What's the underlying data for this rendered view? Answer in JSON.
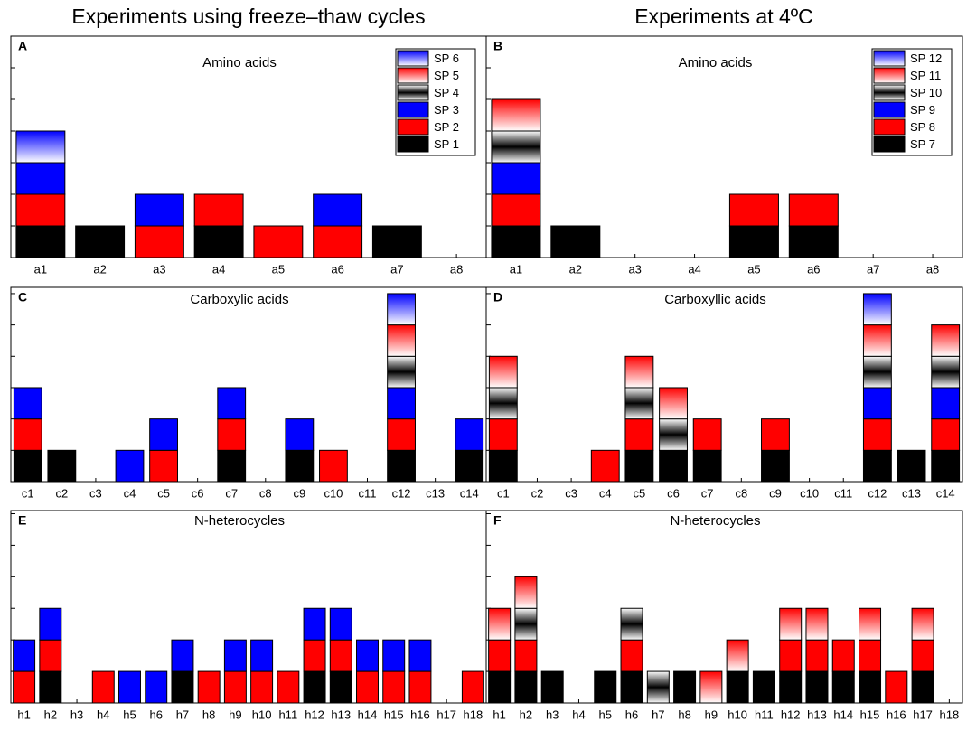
{
  "column_titles": [
    "Experiments using freeze–thaw cycles",
    "Experiments at 4ºC"
  ],
  "chart_data": [
    {
      "type": "bar",
      "stacked": true,
      "panel": "A",
      "title": "Amino acids",
      "categories": [
        "a1",
        "a2",
        "a3",
        "a4",
        "a5",
        "a6",
        "a7",
        "a8"
      ],
      "ylim": [
        0,
        7
      ],
      "yticks": [
        0,
        1,
        2,
        3,
        4,
        5,
        6,
        7
      ],
      "legend": "upper right",
      "series": [
        {
          "name": "SP 1",
          "color": "#000000",
          "values": [
            1,
            1,
            0,
            1,
            0,
            0,
            1,
            0
          ]
        },
        {
          "name": "SP 2",
          "color": "#ff0000",
          "values": [
            1,
            0,
            1,
            1,
            1,
            1,
            0,
            0
          ]
        },
        {
          "name": "SP 3",
          "color": "#0000ff",
          "values": [
            1,
            0,
            1,
            0,
            0,
            1,
            0,
            0
          ]
        },
        {
          "name": "SP 4",
          "color": "#000000",
          "gradient": "middle",
          "values": [
            0,
            0,
            0,
            0,
            0,
            0,
            0,
            0
          ]
        },
        {
          "name": "SP 5",
          "color": "#ff0000",
          "gradient": "top",
          "values": [
            0,
            0,
            0,
            0,
            0,
            0,
            0,
            0
          ]
        },
        {
          "name": "SP 6",
          "color": "#0000ff",
          "gradient": "top",
          "values": [
            1,
            0,
            0,
            0,
            0,
            0,
            0,
            0
          ]
        }
      ]
    },
    {
      "type": "bar",
      "stacked": true,
      "panel": "B",
      "title": "Amino acids",
      "categories": [
        "a1",
        "a2",
        "a3",
        "a4",
        "a5",
        "a6",
        "a7",
        "a8"
      ],
      "ylim": [
        0,
        7
      ],
      "yticks": [
        0,
        1,
        2,
        3,
        4,
        5,
        6,
        7
      ],
      "legend": "upper right",
      "series": [
        {
          "name": "SP 7",
          "color": "#000000",
          "values": [
            1,
            1,
            0,
            0,
            1,
            1,
            0,
            0
          ]
        },
        {
          "name": "SP 8",
          "color": "#ff0000",
          "values": [
            1,
            0,
            0,
            0,
            1,
            1,
            0,
            0
          ]
        },
        {
          "name": "SP 9",
          "color": "#0000ff",
          "values": [
            1,
            0,
            0,
            0,
            0,
            0,
            0,
            0
          ]
        },
        {
          "name": "SP 10",
          "color": "#000000",
          "gradient": "middle",
          "values": [
            1,
            0,
            0,
            0,
            0,
            0,
            0,
            0
          ]
        },
        {
          "name": "SP 11",
          "color": "#ff0000",
          "gradient": "top",
          "values": [
            1,
            0,
            0,
            0,
            0,
            0,
            0,
            0
          ]
        },
        {
          "name": "SP 12",
          "color": "#0000ff",
          "gradient": "top",
          "values": [
            0,
            0,
            0,
            0,
            0,
            0,
            0,
            0
          ]
        }
      ]
    },
    {
      "type": "bar",
      "stacked": true,
      "panel": "C",
      "title": "Carboxylic acids",
      "categories": [
        "c1",
        "c2",
        "c3",
        "c4",
        "c5",
        "c6",
        "c7",
        "c8",
        "c9",
        "c10",
        "c11",
        "c12",
        "c13",
        "c14"
      ],
      "ylim": [
        0,
        6.2
      ],
      "yticks": [
        0,
        1,
        2,
        3,
        4,
        5,
        6
      ],
      "series": [
        {
          "color": "#000000",
          "values": [
            1,
            1,
            0,
            0,
            0,
            0,
            1,
            0,
            1,
            0,
            0,
            1,
            0,
            1
          ]
        },
        {
          "color": "#ff0000",
          "values": [
            1,
            0,
            0,
            0,
            1,
            0,
            1,
            0,
            0,
            1,
            0,
            1,
            0,
            0
          ]
        },
        {
          "color": "#0000ff",
          "values": [
            1,
            0,
            0,
            1,
            1,
            0,
            1,
            0,
            1,
            0,
            0,
            1,
            0,
            1
          ]
        },
        {
          "color": "#000000",
          "gradient": "middle",
          "values": [
            0,
            0,
            0,
            0,
            0,
            0,
            0,
            0,
            0,
            0,
            0,
            1,
            0,
            0
          ]
        },
        {
          "color": "#ff0000",
          "gradient": "top",
          "values": [
            0,
            0,
            0,
            0,
            0,
            0,
            0,
            0,
            0,
            0,
            0,
            1,
            0,
            0
          ]
        },
        {
          "color": "#0000ff",
          "gradient": "top",
          "values": [
            0,
            0,
            0,
            0,
            0,
            0,
            0,
            0,
            0,
            0,
            0,
            1,
            0,
            0
          ]
        }
      ]
    },
    {
      "type": "bar",
      "stacked": true,
      "panel": "D",
      "title": "Carboxyllic acids",
      "categories": [
        "c1",
        "c2",
        "c3",
        "c4",
        "c5",
        "c6",
        "c7",
        "c8",
        "c9",
        "c10",
        "c11",
        "c12",
        "c13",
        "c14"
      ],
      "ylim": [
        0,
        6.2
      ],
      "yticks": [
        0,
        1,
        2,
        3,
        4,
        5,
        6
      ],
      "series": [
        {
          "color": "#000000",
          "values": [
            1,
            0,
            0,
            0,
            1,
            1,
            1,
            0,
            1,
            0,
            0,
            1,
            1,
            1
          ]
        },
        {
          "color": "#ff0000",
          "values": [
            1,
            0,
            0,
            1,
            1,
            0,
            1,
            0,
            1,
            0,
            0,
            1,
            0,
            1
          ]
        },
        {
          "color": "#0000ff",
          "values": [
            0,
            0,
            0,
            0,
            0,
            0,
            0,
            0,
            0,
            0,
            0,
            1,
            0,
            1
          ]
        },
        {
          "color": "#000000",
          "gradient": "middle",
          "values": [
            1,
            0,
            0,
            0,
            1,
            1,
            0,
            0,
            0,
            0,
            0,
            1,
            0,
            1
          ]
        },
        {
          "color": "#ff0000",
          "gradient": "top",
          "values": [
            1,
            0,
            0,
            0,
            1,
            1,
            0,
            0,
            0,
            0,
            0,
            1,
            0,
            1
          ]
        },
        {
          "color": "#0000ff",
          "gradient": "top",
          "values": [
            0,
            0,
            0,
            0,
            0,
            0,
            0,
            0,
            0,
            0,
            0,
            1,
            0,
            0
          ]
        }
      ]
    },
    {
      "type": "bar",
      "stacked": true,
      "panel": "E",
      "title": "N-heterocycles",
      "categories": [
        "h1",
        "h2",
        "h3",
        "h4",
        "h5",
        "h6",
        "h7",
        "h8",
        "h9",
        "h10",
        "h11",
        "h12",
        "h13",
        "h14",
        "h15",
        "h16",
        "h17",
        "h18"
      ],
      "ylim": [
        0,
        6.1
      ],
      "yticks": [
        0,
        1,
        2,
        3,
        4,
        5,
        6
      ],
      "series": [
        {
          "color": "#000000",
          "values": [
            0,
            1,
            0,
            0,
            0,
            0,
            1,
            0,
            0,
            0,
            0,
            1,
            1,
            0,
            0,
            0,
            0,
            0
          ]
        },
        {
          "color": "#ff0000",
          "values": [
            1,
            1,
            0,
            1,
            0,
            0,
            0,
            1,
            1,
            1,
            1,
            1,
            1,
            1,
            1,
            1,
            0,
            1
          ]
        },
        {
          "color": "#0000ff",
          "values": [
            1,
            1,
            0,
            0,
            1,
            1,
            1,
            0,
            1,
            1,
            0,
            1,
            1,
            1,
            1,
            1,
            0,
            0
          ]
        },
        {
          "color": "#000000",
          "gradient": "middle",
          "values": [
            0,
            0,
            0,
            0,
            0,
            0,
            0,
            0,
            0,
            0,
            0,
            0,
            0,
            0,
            0,
            0,
            0,
            0
          ]
        },
        {
          "color": "#ff0000",
          "gradient": "top",
          "values": [
            0,
            0,
            0,
            0,
            0,
            0,
            0,
            0,
            0,
            0,
            0,
            0,
            0,
            0,
            0,
            0,
            0,
            0
          ]
        },
        {
          "color": "#0000ff",
          "gradient": "top",
          "values": [
            0,
            0,
            0,
            0,
            0,
            0,
            0,
            0,
            0,
            0,
            0,
            0,
            0,
            0,
            0,
            0,
            0,
            0
          ]
        }
      ]
    },
    {
      "type": "bar",
      "stacked": true,
      "panel": "F",
      "title": "N-heterocycles",
      "categories": [
        "h1",
        "h2",
        "h3",
        "h4",
        "h5",
        "h6",
        "h7",
        "h8",
        "h9",
        "h10",
        "h11",
        "h12",
        "h13",
        "h14",
        "h15",
        "h16",
        "h17",
        "h18"
      ],
      "ylim": [
        0,
        6.1
      ],
      "yticks": [
        0,
        1,
        2,
        3,
        4,
        5,
        6
      ],
      "series": [
        {
          "color": "#000000",
          "values": [
            1,
            1,
            1,
            0,
            1,
            1,
            0,
            1,
            0,
            1,
            1,
            1,
            1,
            1,
            1,
            0,
            1,
            0
          ]
        },
        {
          "color": "#ff0000",
          "values": [
            1,
            1,
            0,
            0,
            0,
            1,
            0,
            0,
            0,
            0,
            0,
            1,
            1,
            1,
            1,
            1,
            1,
            0
          ]
        },
        {
          "color": "#0000ff",
          "values": [
            0,
            0,
            0,
            0,
            0,
            0,
            0,
            0,
            0,
            0,
            0,
            0,
            0,
            0,
            0,
            0,
            0,
            0
          ]
        },
        {
          "color": "#000000",
          "gradient": "middle",
          "values": [
            0,
            1,
            0,
            0,
            0,
            1,
            1,
            0,
            0,
            0,
            0,
            0,
            0,
            0,
            0,
            0,
            0,
            0
          ]
        },
        {
          "color": "#ff0000",
          "gradient": "top",
          "values": [
            1,
            1,
            0,
            0,
            0,
            0,
            0,
            0,
            1,
            1,
            0,
            1,
            1,
            0,
            1,
            0,
            1,
            0
          ]
        },
        {
          "color": "#0000ff",
          "gradient": "top",
          "values": [
            0,
            0,
            0,
            0,
            0,
            0,
            0,
            0,
            0,
            0,
            0,
            0,
            0,
            0,
            0,
            0,
            0,
            0
          ]
        }
      ]
    }
  ]
}
